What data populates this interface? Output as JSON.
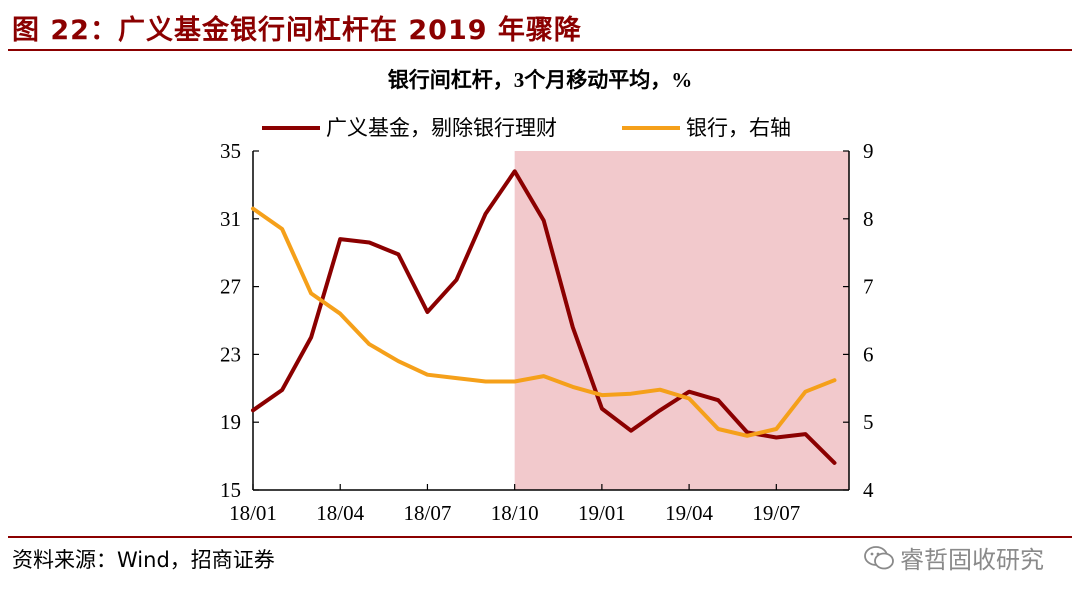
{
  "figure_title": "图  22：广义基金银行间杠杆在 2019 年骤降",
  "source": "资料来源：Wind，招商证券",
  "watermark": "睿哲固收研究",
  "colors": {
    "brand": "#8b0000",
    "series_dark": "#8b0000",
    "series_orange": "#f5a01a",
    "shade": "#f2c9cc",
    "watermark": "#8a8a8a"
  },
  "icons": {
    "watermark": "wechat-icon"
  },
  "chart_data": {
    "type": "line",
    "title": "银行间杠杆，3个月移动平均，%",
    "x": [
      "18/01",
      "18/02",
      "18/03",
      "18/04",
      "18/05",
      "18/06",
      "18/07",
      "18/08",
      "18/09",
      "18/10",
      "18/11",
      "18/12",
      "19/01",
      "19/02",
      "19/03",
      "19/04",
      "19/05",
      "19/06",
      "19/07",
      "19/08",
      "19/09"
    ],
    "x_tick_labels": [
      "18/01",
      "18/04",
      "18/07",
      "18/10",
      "19/01",
      "19/04",
      "19/07"
    ],
    "series": [
      {
        "name": "广义基金，剔除银行理财",
        "axis": "left",
        "color": "#8b0000",
        "values": [
          19.7,
          20.9,
          24.0,
          29.8,
          29.6,
          28.9,
          25.5,
          27.4,
          31.3,
          33.8,
          30.9,
          24.6,
          19.8,
          18.5,
          19.7,
          20.8,
          20.3,
          18.4,
          18.1,
          18.3,
          16.6
        ]
      },
      {
        "name": "银行，右轴",
        "axis": "right",
        "color": "#f5a01a",
        "values": [
          8.15,
          7.85,
          6.9,
          6.6,
          6.15,
          5.9,
          5.7,
          5.65,
          5.6,
          5.6,
          5.68,
          5.52,
          5.4,
          5.42,
          5.48,
          5.35,
          4.9,
          4.8,
          4.9,
          5.45,
          5.62
        ]
      }
    ],
    "y_left": {
      "ylim": [
        15,
        35
      ],
      "ticks": [
        15,
        19,
        23,
        27,
        31,
        35
      ]
    },
    "y_right": {
      "ylim": [
        4,
        9
      ],
      "ticks": [
        4,
        5,
        6,
        7,
        8,
        9
      ]
    },
    "shaded_region": {
      "from": "18/10",
      "to": "19/09"
    },
    "legend_placement": "top",
    "grid": false
  }
}
